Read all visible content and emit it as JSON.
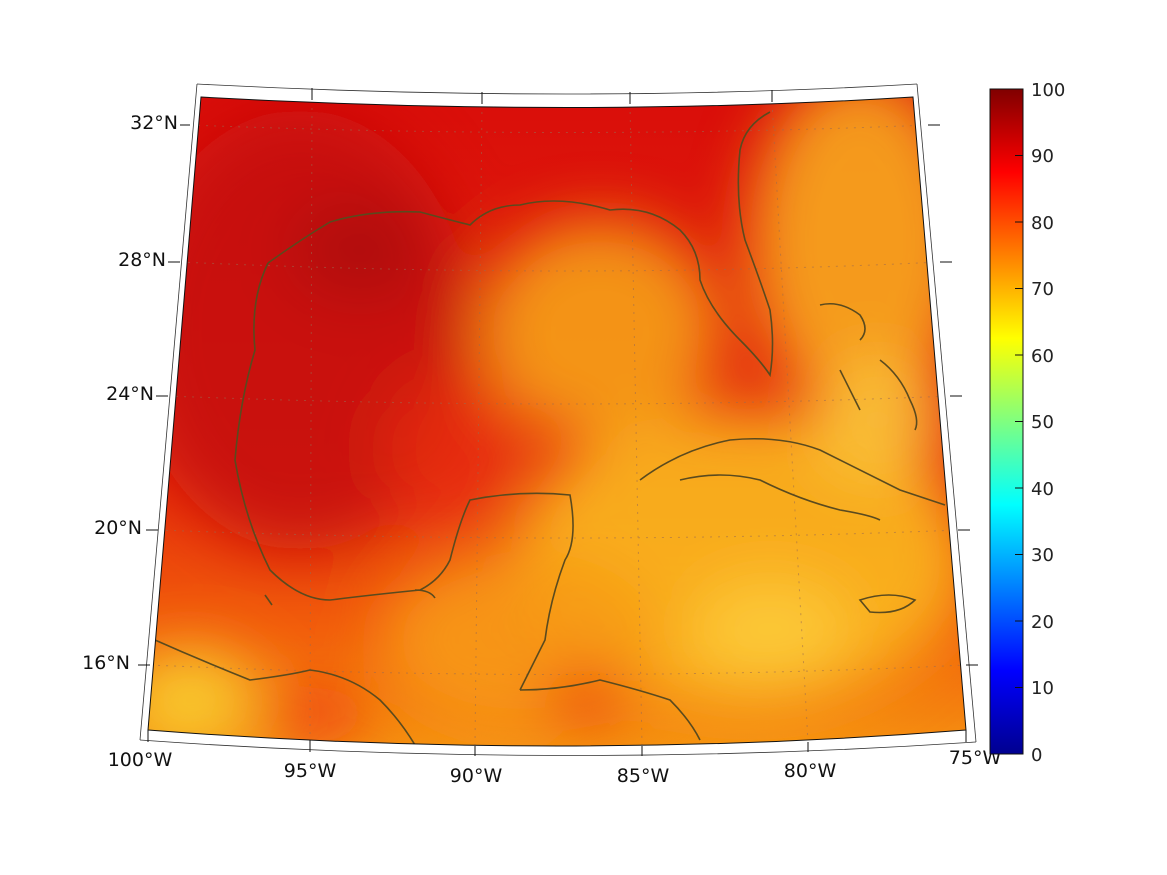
{
  "map": {
    "lat_labels": [
      "32°N",
      "28°N",
      "24°N",
      "20°N",
      "16°N"
    ],
    "lon_labels": [
      "100°W",
      "95°W",
      "90°W",
      "85°W",
      "80°W",
      "75°W"
    ],
    "colorbar": {
      "ticks": [
        "100",
        "90",
        "80",
        "70",
        "60",
        "50",
        "40",
        "30",
        "20",
        "10",
        "0"
      ],
      "range": [
        0,
        100
      ],
      "colormap": "jet"
    },
    "field_colors": {
      "very_high": "#c40a0a",
      "high": "#e8200c",
      "mid_high": "#f25a0a",
      "mid": "#f8a010",
      "low": "#fbd23a",
      "coast": "#5a4a1e"
    }
  }
}
